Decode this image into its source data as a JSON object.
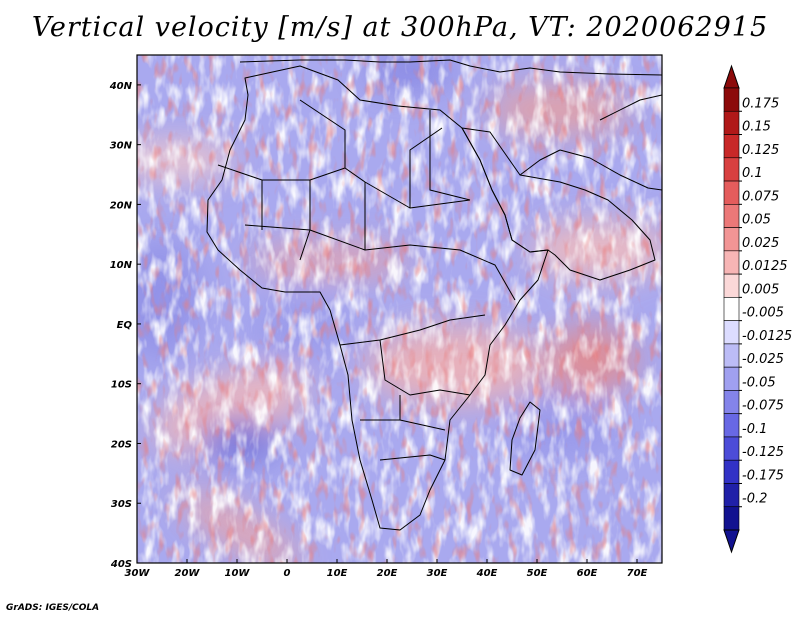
{
  "title": "Vertical velocity [m/s] at 300hPa, VT: 2020062915",
  "credit": "GrADS: IGES/COLA",
  "map": {
    "variable": "Vertical velocity",
    "units": "m/s",
    "level": "300hPa",
    "valid_time": "2020062915",
    "lon_range": [
      -30,
      75
    ],
    "lat_range": [
      -40,
      45
    ],
    "lon_ticks": [
      {
        "value": -30,
        "label": "30W"
      },
      {
        "value": -20,
        "label": "20W"
      },
      {
        "value": -10,
        "label": "10W"
      },
      {
        "value": 0,
        "label": "0"
      },
      {
        "value": 10,
        "label": "10E"
      },
      {
        "value": 20,
        "label": "20E"
      },
      {
        "value": 30,
        "label": "30E"
      },
      {
        "value": 40,
        "label": "40E"
      },
      {
        "value": 50,
        "label": "50E"
      },
      {
        "value": 60,
        "label": "60E"
      },
      {
        "value": 70,
        "label": "70E"
      }
    ],
    "lat_ticks": [
      {
        "value": 40,
        "label": "40N"
      },
      {
        "value": 30,
        "label": "30N"
      },
      {
        "value": 20,
        "label": "20N"
      },
      {
        "value": 10,
        "label": "10N"
      },
      {
        "value": 0,
        "label": "EQ"
      },
      {
        "value": -10,
        "label": "10S"
      },
      {
        "value": -20,
        "label": "20S"
      },
      {
        "value": -30,
        "label": "30S"
      },
      {
        "value": -40,
        "label": "40S"
      }
    ]
  },
  "colorbar": {
    "labels": [
      "0.175",
      "0.15",
      "0.125",
      "0.1",
      "0.075",
      "0.05",
      "0.025",
      "0.0125",
      "0.005",
      "-0.005",
      "-0.0125",
      "-0.025",
      "-0.05",
      "-0.075",
      "-0.1",
      "-0.125",
      "-0.175",
      "-0.2"
    ],
    "colors": [
      "#8c0a0a",
      "#b01818",
      "#c82828",
      "#d84040",
      "#e45c5c",
      "#ec7878",
      "#f29595",
      "#f7b5b5",
      "#fbd8d8",
      "#ffffff",
      "#dcdcff",
      "#bcbcf6",
      "#a0a0f0",
      "#8484ea",
      "#6868e4",
      "#4c4cd8",
      "#3232c6",
      "#2020a8",
      "#121290"
    ],
    "top_cap": "#8c0a0a",
    "bottom_cap": "#121290"
  }
}
